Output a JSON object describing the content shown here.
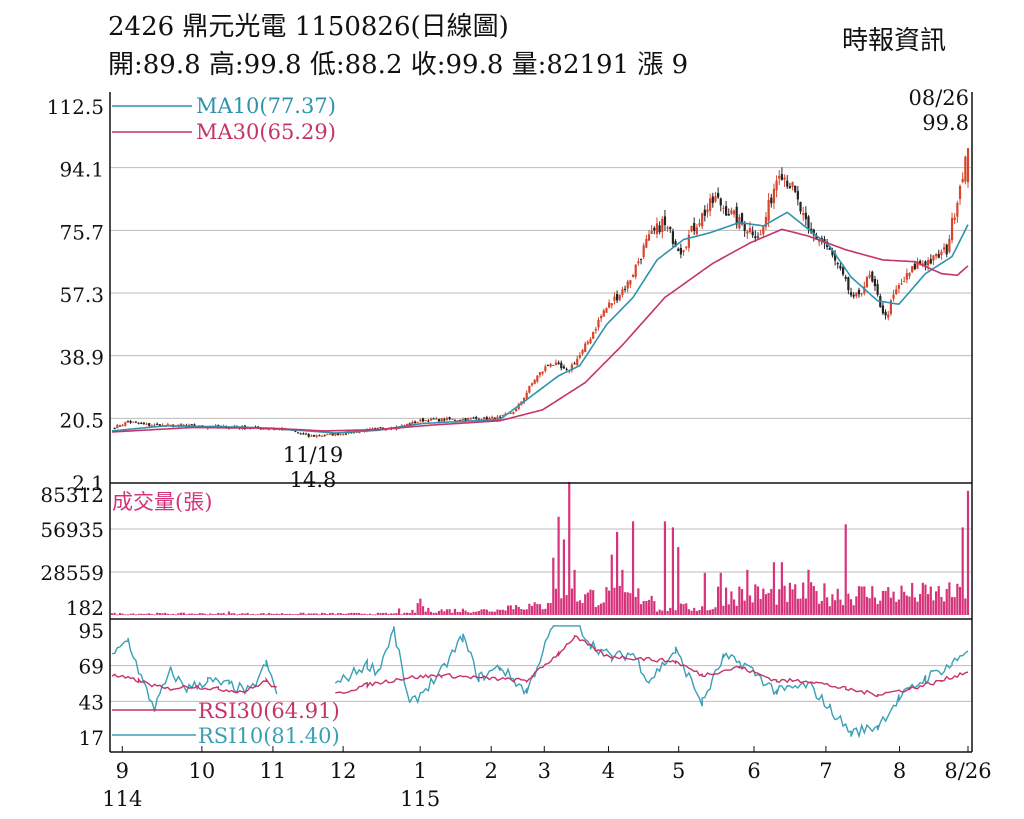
{
  "header": {
    "title": "2426  鼎元光電 1150826(日線圖)",
    "ohlc": "開:89.8 高:99.8 低:88.2 收:99.8 量:82191 漲 9",
    "source": "時報資訊"
  },
  "colors": {
    "up": "#d9442c",
    "down": "#222222",
    "ma10": "#2e93ad",
    "ma30": "#c6336a",
    "volume": "#d6337a",
    "rsi10": "#3a9fb5",
    "rsi30": "#c6336a",
    "grid": "#bdbdbd"
  },
  "chart_data": [
    {
      "type": "candlestick",
      "panel": "price",
      "ylim": [
        2.1,
        112.5
      ],
      "yticks": [
        "112.5",
        "94.1",
        "75.7",
        "57.3",
        "38.9",
        "20.5",
        "2.1"
      ],
      "series": [
        {
          "name": "MA10(77.37)",
          "key": "ma10"
        },
        {
          "name": "MA30(65.29)",
          "key": "ma30"
        }
      ],
      "annotations": [
        {
          "date": "08/26",
          "value": "99.8"
        },
        {
          "date": "11/19",
          "value": "14.8"
        }
      ],
      "anchors": [
        [
          0,
          17.5
        ],
        [
          6,
          19.5
        ],
        [
          14,
          18.5
        ],
        [
          30,
          18.2
        ],
        [
          50,
          17.8
        ],
        [
          66,
          17.2
        ],
        [
          74,
          15.2
        ],
        [
          84,
          15.8
        ],
        [
          98,
          17.2
        ],
        [
          108,
          18.0
        ],
        [
          117,
          20.0
        ],
        [
          134,
          20.3
        ],
        [
          146,
          20.6
        ],
        [
          152,
          23.0
        ],
        [
          159,
          32.0
        ],
        [
          165,
          37.0
        ],
        [
          171,
          34.0
        ],
        [
          177,
          40.0
        ],
        [
          185,
          52.0
        ],
        [
          194,
          60.0
        ],
        [
          201,
          72.0
        ],
        [
          207,
          78.0
        ],
        [
          214,
          70.0
        ],
        [
          220,
          78.0
        ],
        [
          227,
          85.0
        ],
        [
          236,
          78.0
        ],
        [
          244,
          74.0
        ],
        [
          251,
          94.0
        ],
        [
          256,
          88.0
        ],
        [
          262,
          75.0
        ],
        [
          268,
          72.0
        ],
        [
          273,
          65.0
        ],
        [
          279,
          55.0
        ],
        [
          285,
          62.0
        ],
        [
          291,
          50.0
        ],
        [
          295,
          58.0
        ],
        [
          303,
          66.0
        ],
        [
          309,
          67.0
        ],
        [
          314,
          70.0
        ],
        [
          320,
          93.0
        ],
        [
          322,
          99.8
        ]
      ],
      "ma10_anchors": [
        [
          0,
          16.8
        ],
        [
          20,
          18.3
        ],
        [
          50,
          17.9
        ],
        [
          70,
          17.0
        ],
        [
          84,
          16.2
        ],
        [
          100,
          17.0
        ],
        [
          117,
          19.0
        ],
        [
          146,
          20.2
        ],
        [
          156,
          26.0
        ],
        [
          168,
          33.0
        ],
        [
          176,
          36.0
        ],
        [
          186,
          48.0
        ],
        [
          196,
          56.0
        ],
        [
          205,
          67.0
        ],
        [
          215,
          73.0
        ],
        [
          225,
          75.0
        ],
        [
          236,
          78.0
        ],
        [
          245,
          77.0
        ],
        [
          254,
          81.0
        ],
        [
          262,
          76.0
        ],
        [
          270,
          71.0
        ],
        [
          278,
          62.0
        ],
        [
          288,
          55.0
        ],
        [
          296,
          54.0
        ],
        [
          306,
          63.0
        ],
        [
          316,
          68.0
        ],
        [
          322,
          77.37
        ]
      ],
      "ma30_anchors": [
        [
          0,
          16.5
        ],
        [
          30,
          17.8
        ],
        [
          60,
          17.6
        ],
        [
          80,
          16.8
        ],
        [
          100,
          17.2
        ],
        [
          120,
          18.5
        ],
        [
          146,
          19.8
        ],
        [
          162,
          23.0
        ],
        [
          178,
          31.0
        ],
        [
          192,
          42.0
        ],
        [
          208,
          56.0
        ],
        [
          226,
          66.0
        ],
        [
          240,
          72.0
        ],
        [
          252,
          76.0
        ],
        [
          262,
          74.0
        ],
        [
          276,
          70.0
        ],
        [
          290,
          67.0
        ],
        [
          302,
          66.5
        ],
        [
          312,
          63.0
        ],
        [
          318,
          62.5
        ],
        [
          322,
          65.29
        ]
      ]
    },
    {
      "type": "bar",
      "panel": "volume",
      "title": "成交量(張)",
      "ylim": [
        182,
        85312
      ],
      "yticks": [
        "85312",
        "56935",
        "28559",
        "182"
      ],
      "spikes": [
        [
          166,
          38000
        ],
        [
          168,
          65000
        ],
        [
          170,
          50000
        ],
        [
          172,
          88000
        ],
        [
          174,
          30000
        ],
        [
          188,
          40000
        ],
        [
          190,
          55000
        ],
        [
          192,
          30000
        ],
        [
          196,
          62000
        ],
        [
          208,
          62000
        ],
        [
          211,
          58000
        ],
        [
          213,
          45000
        ],
        [
          223,
          28000
        ],
        [
          229,
          28000
        ],
        [
          239,
          30000
        ],
        [
          249,
          35000
        ],
        [
          252,
          35000
        ],
        [
          262,
          30000
        ],
        [
          276,
          60000
        ],
        [
          320,
          58000
        ],
        [
          322,
          82191
        ]
      ]
    },
    {
      "type": "line",
      "panel": "rsi",
      "ylim": [
        17,
        95
      ],
      "yticks": [
        "95",
        "69",
        "43",
        "17"
      ],
      "series": [
        {
          "name": "RSI30(64.91)",
          "key": "rsi30"
        },
        {
          "name": "RSI10(81.40)",
          "key": "rsi10"
        }
      ],
      "rsi10_anchors": [
        [
          0,
          75
        ],
        [
          6,
          88
        ],
        [
          12,
          55
        ],
        [
          16,
          38
        ],
        [
          22,
          65
        ],
        [
          28,
          52
        ],
        [
          36,
          58
        ],
        [
          44,
          55
        ],
        [
          52,
          50
        ],
        [
          58,
          70
        ],
        [
          62,
          50
        ],
        [
          84,
          0
        ],
        [
          84,
          55
        ],
        [
          96,
          70
        ],
        [
          100,
          65
        ],
        [
          106,
          95
        ],
        [
          112,
          40
        ],
        [
          124,
          65
        ],
        [
          132,
          90
        ],
        [
          138,
          60
        ],
        [
          146,
          68
        ],
        [
          156,
          50
        ],
        [
          166,
          98
        ],
        [
          172,
          110
        ],
        [
          180,
          85
        ],
        [
          188,
          75
        ],
        [
          196,
          78
        ],
        [
          202,
          58
        ],
        [
          212,
          80
        ],
        [
          222,
          42
        ],
        [
          230,
          75
        ],
        [
          238,
          70
        ],
        [
          250,
          50
        ],
        [
          262,
          55
        ],
        [
          270,
          38
        ],
        [
          278,
          20
        ],
        [
          288,
          25
        ],
        [
          296,
          45
        ],
        [
          306,
          60
        ],
        [
          316,
          70
        ],
        [
          322,
          81.4
        ]
      ],
      "rsi30_anchors": [
        [
          0,
          62
        ],
        [
          10,
          58
        ],
        [
          20,
          52
        ],
        [
          30,
          54
        ],
        [
          40,
          52
        ],
        [
          50,
          50
        ],
        [
          58,
          58
        ],
        [
          62,
          52
        ],
        [
          84,
          0
        ],
        [
          84,
          48
        ],
        [
          96,
          55
        ],
        [
          110,
          60
        ],
        [
          124,
          62
        ],
        [
          140,
          60
        ],
        [
          156,
          58
        ],
        [
          168,
          78
        ],
        [
          174,
          90
        ],
        [
          186,
          76
        ],
        [
          200,
          74
        ],
        [
          212,
          72
        ],
        [
          222,
          62
        ],
        [
          236,
          68
        ],
        [
          250,
          58
        ],
        [
          262,
          58
        ],
        [
          276,
          52
        ],
        [
          288,
          48
        ],
        [
          300,
          52
        ],
        [
          312,
          58
        ],
        [
          322,
          64.91
        ]
      ]
    }
  ],
  "xaxis": {
    "labels": [
      {
        "text": "9",
        "x": 0.012
      },
      {
        "text": "10",
        "x": 0.105
      },
      {
        "text": "11",
        "x": 0.188
      },
      {
        "text": "12",
        "x": 0.27
      },
      {
        "text": "1",
        "x": 0.36
      },
      {
        "text": "2",
        "x": 0.443
      },
      {
        "text": "3",
        "x": 0.505
      },
      {
        "text": "4",
        "x": 0.58
      },
      {
        "text": "5",
        "x": 0.662
      },
      {
        "text": "6",
        "x": 0.75
      },
      {
        "text": "7",
        "x": 0.834
      },
      {
        "text": "8",
        "x": 0.92
      },
      {
        "text": "8/26",
        "x": 1.0
      }
    ],
    "years": [
      {
        "text": "114",
        "x": 0.012
      },
      {
        "text": "115",
        "x": 0.36
      }
    ]
  }
}
